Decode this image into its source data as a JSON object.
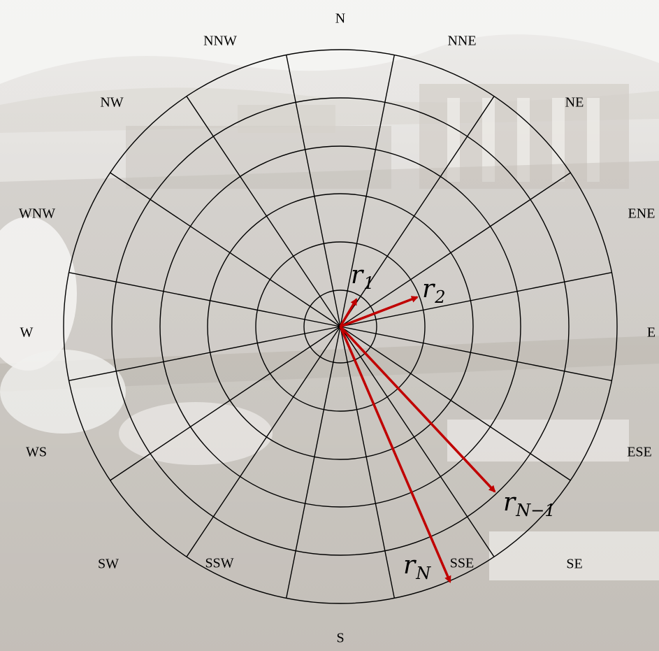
{
  "diagram": {
    "directions": [
      "N",
      "NNE",
      "NE",
      "ENE",
      "E",
      "ESE",
      "SE",
      "SSE",
      "S",
      "SSW",
      "SW",
      "WS",
      "W",
      "WNW",
      "NW",
      "NNW"
    ],
    "rings": 6,
    "sectors": 16,
    "colors": {
      "grid": "#000000",
      "vector": "#c00000",
      "label": "#000000"
    },
    "vectors": [
      {
        "name": "r",
        "sub": "1"
      },
      {
        "name": "r",
        "sub": "2"
      },
      {
        "name": "r",
        "sub": "N−1"
      },
      {
        "name": "r",
        "sub": "N"
      }
    ]
  }
}
